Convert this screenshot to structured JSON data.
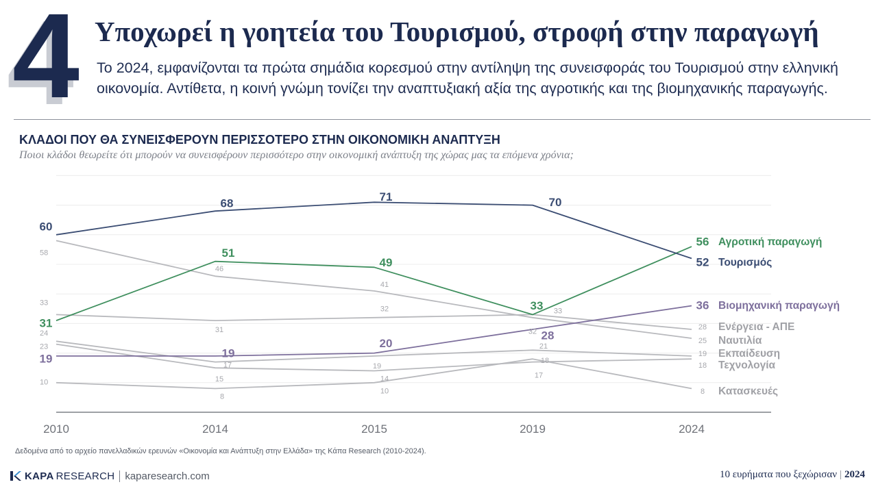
{
  "page": {
    "number": "4",
    "headline": "Υποχωρεί η γοητεία του Τουρισμού, στροφή στην παραγωγή",
    "intro": "Το 2024, εμφανίζονται τα πρώτα σημάδια κορεσμού στην αντίληψη της συνεισφοράς του Τουρισμού στην ελληνική οικονομία. Αντίθετα, η κοινή γνώμη τονίζει την αναπτυξιακή αξία της αγροτικής και της βιομηχανικής παραγωγής.",
    "source": "Δεδομένα από το αρχείο πανελλαδικών ερευνών «Οικονομία και Ανάπτυξη στην Ελλάδα» της Κάπα Research (2010-2024)."
  },
  "footer": {
    "brand_bold": "KAPA",
    "brand_rest": "RESEARCH",
    "site": "kaparesearch.com",
    "tagline": "10 ευρήματα που ξεχώρισαν",
    "year": "2024"
  },
  "colors": {
    "navy": "#3b4d73",
    "green": "#3f8f5e",
    "purple": "#7d6f9c",
    "gray": "#b8b9bd",
    "axis": "#6e7178"
  },
  "chart_data": {
    "type": "line",
    "title": "ΚΛΑΔΟΙ ΠΟΥ ΘΑ ΣΥΝΕΙΣΦΕΡΟΥΝ ΠΕΡΙΣΣΟΤΕΡΟ ΣΤΗΝ ΟΙΚΟΝΟΜΙΚΗ ΑΝΑΠΤΥΞΗ",
    "subtitle": "Ποιοι κλάδοι θεωρείτε ότι μπορούν να συνεισφέρουν περισσότερο στην οικονομική ανάπτυξη της χώρας μας τα επόμενα χρόνια;",
    "x": [
      "2010",
      "2014",
      "2015",
      "2019",
      "2024"
    ],
    "ylim": [
      0,
      80
    ],
    "grid": true,
    "series": [
      {
        "name": "Κατασκευές",
        "values": [
          10,
          8,
          10,
          18,
          8
        ],
        "color": "#b8b9bd",
        "highlight": false
      },
      {
        "name": "Τεχνολογία",
        "values": [
          23,
          15,
          14,
          17,
          18
        ],
        "color": "#b8b9bd",
        "highlight": false
      },
      {
        "name": "Εκπαίδευση",
        "values": [
          24,
          17,
          19,
          21,
          19
        ],
        "color": "#b8b9bd",
        "highlight": false
      },
      {
        "name": "Ναυτιλία",
        "values": [
          58,
          46,
          41,
          32,
          25
        ],
        "color": "#b8b9bd",
        "highlight": false
      },
      {
        "name": "Ενέργεια - ΑΠΕ",
        "values": [
          33,
          31,
          32,
          33,
          28
        ],
        "color": "#b8b9bd",
        "highlight": false
      },
      {
        "name": "Βιομηχανική παραγωγή",
        "values": [
          19,
          19,
          20,
          28,
          36
        ],
        "color": "#7d6f9c",
        "highlight": true
      },
      {
        "name": "Αγροτική παραγωγή",
        "values": [
          31,
          51,
          49,
          33,
          56
        ],
        "color": "#3f8f5e",
        "highlight": true
      },
      {
        "name": "Τουρισμός",
        "values": [
          60,
          68,
          71,
          70,
          52
        ],
        "color": "#3b4d73",
        "highlight": true
      }
    ]
  }
}
